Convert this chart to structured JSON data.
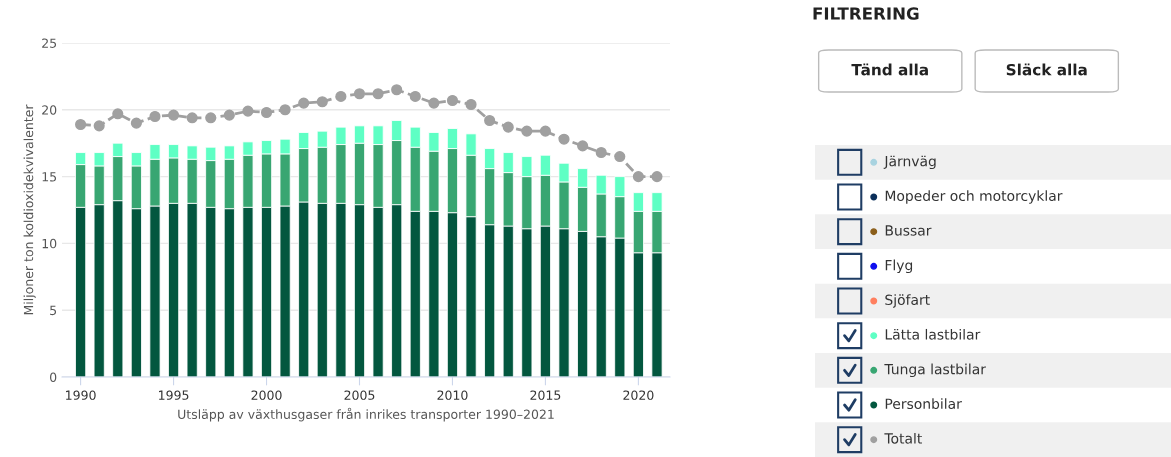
{
  "chart_data": [
    {
      "type": "bar",
      "stacked": true,
      "xlabel": "Utsläpp av växthusgaser från inrikes transporter 1990–2021",
      "ylabel": "Miljoner ton koldioxidekvivalenter",
      "x": [
        1990,
        1991,
        1992,
        1993,
        1994,
        1995,
        1996,
        1997,
        1998,
        1999,
        2000,
        2001,
        2002,
        2003,
        2004,
        2005,
        2006,
        2007,
        2008,
        2009,
        2010,
        2011,
        2012,
        2013,
        2014,
        2015,
        2016,
        2017,
        2018,
        2019,
        2020,
        2021
      ],
      "xlim": [
        1989,
        2021.7
      ],
      "xticks": [
        1990,
        1995,
        2000,
        2005,
        2010,
        2015,
        2020
      ],
      "ylim": [
        0,
        25
      ],
      "yticks": [
        0,
        5,
        10,
        15,
        20,
        25
      ],
      "grid": "y",
      "legend": "right",
      "series": [
        {
          "name": "Totalt",
          "type": "line",
          "color": "#a0a0a0",
          "marker": "circle",
          "line_style": "dashed",
          "values": [
            18.9,
            18.8,
            19.7,
            19.0,
            19.5,
            19.6,
            19.4,
            19.4,
            19.6,
            19.9,
            19.8,
            20.0,
            20.5,
            20.6,
            21.0,
            21.2,
            21.2,
            21.5,
            21.0,
            20.5,
            20.7,
            20.4,
            19.2,
            18.7,
            18.4,
            18.4,
            17.8,
            17.3,
            16.8,
            16.5,
            15.0,
            15.0
          ]
        },
        {
          "name": "Personbilar",
          "color": "#03573f",
          "values": [
            12.7,
            12.9,
            13.2,
            12.6,
            12.8,
            13.0,
            13.0,
            12.7,
            12.6,
            12.7,
            12.7,
            12.8,
            13.1,
            13.0,
            13.0,
            12.9,
            12.7,
            12.9,
            12.4,
            12.4,
            12.3,
            12.0,
            11.4,
            11.3,
            11.1,
            11.3,
            11.1,
            10.9,
            10.5,
            10.4,
            9.3,
            9.3
          ]
        },
        {
          "name": "Tunga lastbilar",
          "color": "#38a672",
          "values": [
            3.2,
            2.9,
            3.3,
            3.2,
            3.5,
            3.4,
            3.3,
            3.5,
            3.7,
            3.9,
            4.0,
            3.9,
            4.0,
            4.2,
            4.4,
            4.6,
            4.7,
            4.8,
            4.8,
            4.5,
            4.8,
            4.6,
            4.2,
            4.0,
            3.9,
            3.8,
            3.5,
            3.3,
            3.2,
            3.1,
            3.1,
            3.1
          ]
        },
        {
          "name": "Lätta lastbilar",
          "color": "#5effc4",
          "values": [
            0.9,
            1.0,
            1.0,
            1.0,
            1.1,
            1.0,
            1.0,
            1.0,
            1.0,
            1.0,
            1.0,
            1.1,
            1.2,
            1.2,
            1.3,
            1.3,
            1.4,
            1.5,
            1.5,
            1.4,
            1.5,
            1.6,
            1.5,
            1.5,
            1.5,
            1.5,
            1.4,
            1.4,
            1.4,
            1.5,
            1.4,
            1.4
          ]
        },
        {
          "name": "Sjöfart",
          "color": "#ff7f5f",
          "values": [
            null,
            null,
            null,
            null,
            null,
            null,
            null,
            null,
            null,
            null,
            null,
            null,
            null,
            null,
            null,
            null,
            null,
            null,
            null,
            null,
            null,
            null,
            null,
            null,
            null,
            null,
            null,
            null,
            null,
            null,
            null,
            null
          ]
        },
        {
          "name": "Flyg",
          "color": "#1010ee",
          "values": [
            null,
            null,
            null,
            null,
            null,
            null,
            null,
            null,
            null,
            null,
            null,
            null,
            null,
            null,
            null,
            null,
            null,
            null,
            null,
            null,
            null,
            null,
            null,
            null,
            null,
            null,
            null,
            null,
            null,
            null,
            null,
            null
          ]
        },
        {
          "name": "Bussar",
          "color": "#8b5e1a",
          "values": [
            null,
            null,
            null,
            null,
            null,
            null,
            null,
            null,
            null,
            null,
            null,
            null,
            null,
            null,
            null,
            null,
            null,
            null,
            null,
            null,
            null,
            null,
            null,
            null,
            null,
            null,
            null,
            null,
            null,
            null,
            null,
            null
          ]
        },
        {
          "name": "Mopeder och motorcyklar",
          "color": "#0b2f5a",
          "values": [
            null,
            null,
            null,
            null,
            null,
            null,
            null,
            null,
            null,
            null,
            null,
            null,
            null,
            null,
            null,
            null,
            null,
            null,
            null,
            null,
            null,
            null,
            null,
            null,
            null,
            null,
            null,
            null,
            null,
            null,
            null,
            null
          ]
        },
        {
          "name": "Järnväg",
          "color": "#a8d3e0",
          "values": [
            null,
            null,
            null,
            null,
            null,
            null,
            null,
            null,
            null,
            null,
            null,
            null,
            null,
            null,
            null,
            null,
            null,
            null,
            null,
            null,
            null,
            null,
            null,
            null,
            null,
            null,
            null,
            null,
            null,
            null,
            null,
            null
          ]
        }
      ]
    },
    {
      "type": "other",
      "title": "FILTRERING",
      "annotations": [
        "Tänd alla",
        "Släck alla"
      ]
    }
  ]
}
